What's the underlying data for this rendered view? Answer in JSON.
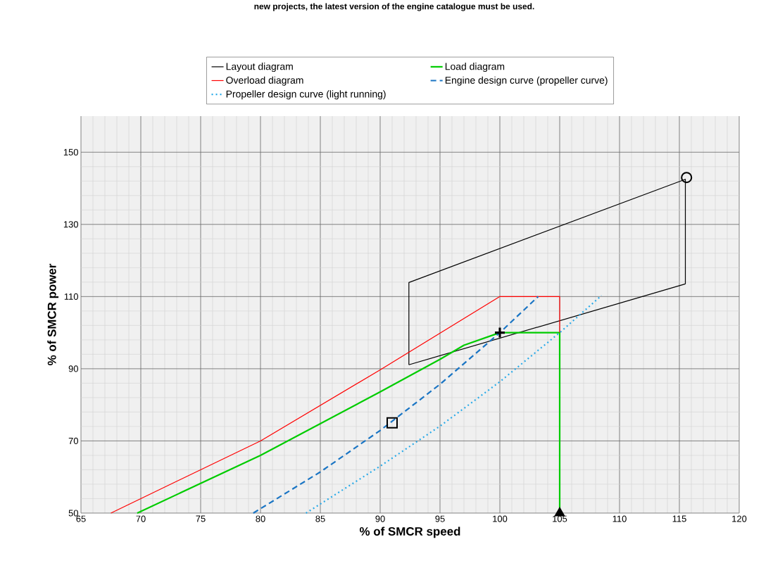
{
  "chart_data": {
    "type": "line",
    "title": "new projects, the latest version of the engine catalogue must be used.",
    "xlabel": "% of SMCR speed",
    "ylabel": "% of SMCR power",
    "xlim": [
      65,
      120
    ],
    "ylim": [
      50,
      160
    ],
    "xticks": [
      65,
      70,
      75,
      80,
      85,
      90,
      95,
      100,
      105,
      110,
      115,
      120
    ],
    "yticks": [
      50,
      70,
      90,
      110,
      130,
      150
    ],
    "grid": true,
    "legend": "top",
    "series": [
      {
        "name": "Layout diagram",
        "color": "#000000",
        "line_style": "solid",
        "x": [
          92.4,
          92.4,
          115.5,
          115.5
        ],
        "values": [
          91.1,
          113.9,
          142.5,
          113.5
        ]
      },
      {
        "color": "#000000",
        "line_style": "solid",
        "x": [
          92.4,
          115.5
        ],
        "values": [
          91.1,
          113.5
        ]
      },
      {
        "name": "Load diagram",
        "color": "#00cc00",
        "line_style": "solid",
        "x": [
          69.7,
          80,
          90,
          95,
          97,
          100,
          105,
          105
        ],
        "values": [
          50,
          66,
          83.6,
          92.6,
          96.5,
          100,
          100,
          50
        ]
      },
      {
        "name": "Overload diagram",
        "color": "#ff0000",
        "line_style": "solid",
        "x": [
          67.5,
          80,
          90,
          100,
          105,
          105
        ],
        "values": [
          50,
          70,
          89.7,
          110,
          110,
          100
        ]
      },
      {
        "name": "Engine design curve (propeller curve)",
        "color": "#1a75c4",
        "line_style": "dashed",
        "x": [
          79.4,
          85,
          90,
          95,
          100,
          103.2
        ],
        "values": [
          50,
          61.4,
          72.9,
          85.7,
          100,
          110
        ]
      },
      {
        "name": "Propeller design curve (light running)",
        "color": "#29aae8",
        "line_style": "dotted",
        "x": [
          83.8,
          90,
          95,
          100,
          105,
          108.5
        ],
        "values": [
          50,
          63,
          74.1,
          86.4,
          100,
          110.3
        ]
      },
      {
        "type": "scatter",
        "marker": "square",
        "color": "#000000",
        "x": [
          91
        ],
        "values": [
          75
        ]
      },
      {
        "type": "scatter",
        "marker": "cross",
        "color": "#000000",
        "x": [
          100
        ],
        "values": [
          100
        ]
      },
      {
        "type": "scatter",
        "marker": "circle",
        "color": "#000000",
        "x": [
          115.6
        ],
        "values": [
          143
        ]
      },
      {
        "type": "scatter",
        "marker": "triangle",
        "color": "#000000",
        "x": [
          105
        ],
        "values": [
          50
        ]
      }
    ]
  }
}
